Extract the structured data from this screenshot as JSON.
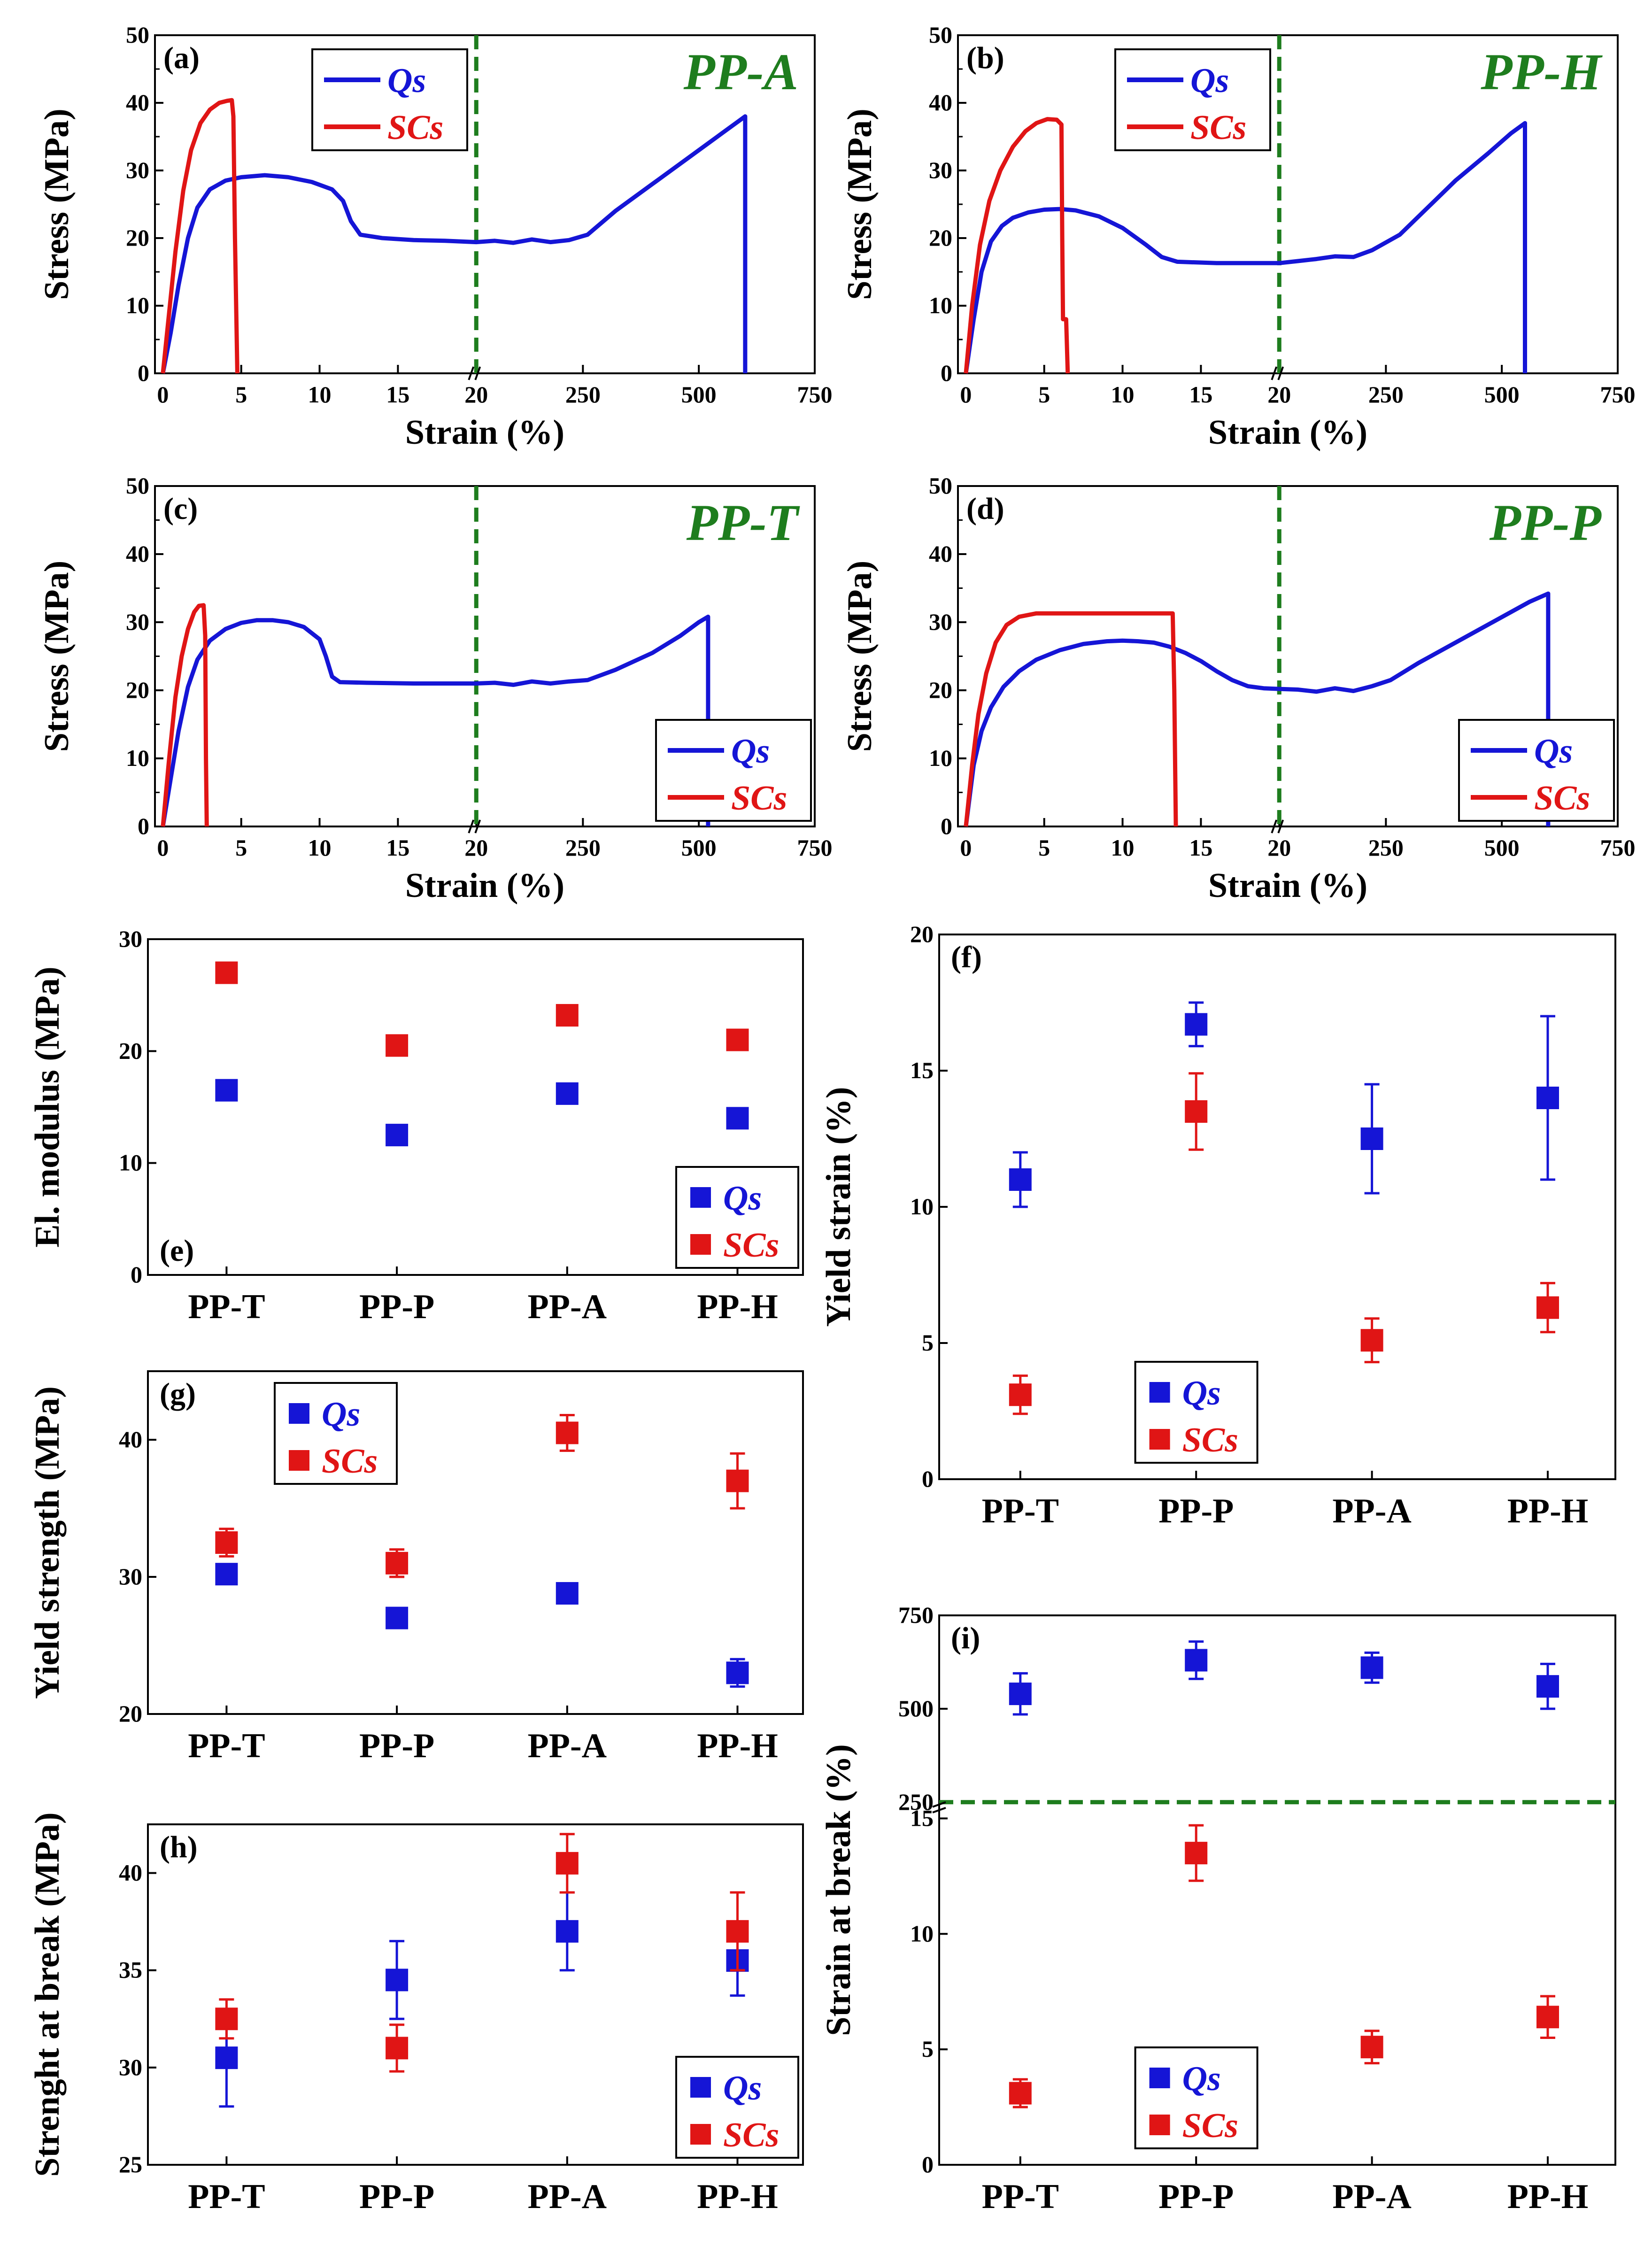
{
  "colors": {
    "qs": "#1515d6",
    "scs": "#e01515",
    "divider": "#1e7d1e"
  },
  "legend": {
    "qs": "Qs",
    "scs": "SCs"
  },
  "chart_data": [
    {
      "type": "line",
      "label": "(a)",
      "title": "PP-A",
      "xlabel": "Strain (%)",
      "ylabel": "Stress (MPa)",
      "ylim": [
        0,
        50
      ],
      "yticks": [
        "0",
        "10",
        "20",
        "30",
        "40",
        "50"
      ],
      "xlim_low": [
        0,
        20
      ],
      "xlim_high": [
        20,
        750
      ],
      "xticks_low": [
        "0",
        "5",
        "10",
        "15",
        "20"
      ],
      "xticks_high": [
        "250",
        "500",
        "750"
      ],
      "legend_pos": "top-left",
      "series": [
        {
          "name": "Qs",
          "points": [
            [
              0,
              0
            ],
            [
              0.5,
              6
            ],
            [
              1,
              13
            ],
            [
              1.6,
              20
            ],
            [
              2.2,
              24.5
            ],
            [
              3,
              27.2
            ],
            [
              4,
              28.5
            ],
            [
              5,
              29
            ],
            [
              6.5,
              29.3
            ],
            [
              8,
              29
            ],
            [
              9.5,
              28.3
            ],
            [
              10.8,
              27.2
            ],
            [
              11.5,
              25.5
            ],
            [
              12,
              22.5
            ],
            [
              12.6,
              20.5
            ],
            [
              14,
              20
            ],
            [
              16,
              19.7
            ],
            [
              18,
              19.6
            ],
            [
              20,
              19.4
            ],
            [
              60,
              19.6
            ],
            [
              100,
              19.3
            ],
            [
              140,
              19.8
            ],
            [
              180,
              19.4
            ],
            [
              220,
              19.7
            ],
            [
              260,
              20.5
            ],
            [
              320,
              24
            ],
            [
              400,
              28
            ],
            [
              480,
              32
            ],
            [
              550,
              35.5
            ],
            [
              600,
              38
            ],
            [
              600,
              0
            ]
          ]
        },
        {
          "name": "SCs",
          "points": [
            [
              0,
              0
            ],
            [
              0.4,
              9
            ],
            [
              0.8,
              18
            ],
            [
              1.3,
              27
            ],
            [
              1.8,
              33
            ],
            [
              2.4,
              37
            ],
            [
              3,
              39
            ],
            [
              3.6,
              40
            ],
            [
              4.1,
              40.3
            ],
            [
              4.4,
              40.4
            ],
            [
              4.5,
              38
            ],
            [
              4.6,
              20
            ],
            [
              4.75,
              0
            ]
          ]
        }
      ]
    },
    {
      "type": "line",
      "label": "(b)",
      "title": "PP-H",
      "xlabel": "Strain (%)",
      "ylabel": "Stress (MPa)",
      "ylim": [
        0,
        50
      ],
      "yticks": [
        "0",
        "10",
        "20",
        "30",
        "40",
        "50"
      ],
      "xlim_low": [
        0,
        20
      ],
      "xlim_high": [
        20,
        750
      ],
      "xticks_low": [
        "0",
        "5",
        "10",
        "15",
        "20"
      ],
      "xticks_high": [
        "250",
        "500",
        "750"
      ],
      "legend_pos": "top-left",
      "series": [
        {
          "name": "Qs",
          "points": [
            [
              0,
              0
            ],
            [
              0.5,
              8
            ],
            [
              1,
              15
            ],
            [
              1.6,
              19.5
            ],
            [
              2.3,
              21.8
            ],
            [
              3,
              23
            ],
            [
              4,
              23.8
            ],
            [
              5,
              24.2
            ],
            [
              6,
              24.3
            ],
            [
              7,
              24.1
            ],
            [
              8.5,
              23.2
            ],
            [
              10,
              21.5
            ],
            [
              11.5,
              19
            ],
            [
              12.5,
              17.2
            ],
            [
              13.5,
              16.5
            ],
            [
              16,
              16.3
            ],
            [
              20,
              16.3
            ],
            [
              60,
              16.6
            ],
            [
              100,
              16.9
            ],
            [
              140,
              17.3
            ],
            [
              180,
              17.2
            ],
            [
              220,
              18.2
            ],
            [
              280,
              20.5
            ],
            [
              340,
              24.5
            ],
            [
              400,
              28.5
            ],
            [
              470,
              32.5
            ],
            [
              520,
              35.5
            ],
            [
              550,
              37
            ],
            [
              550,
              0
            ]
          ]
        },
        {
          "name": "SCs",
          "points": [
            [
              0,
              0
            ],
            [
              0.4,
              10
            ],
            [
              0.9,
              19
            ],
            [
              1.5,
              25.5
            ],
            [
              2.2,
              30
            ],
            [
              3,
              33.5
            ],
            [
              3.8,
              35.8
            ],
            [
              4.5,
              37
            ],
            [
              5.2,
              37.6
            ],
            [
              5.8,
              37.5
            ],
            [
              6.1,
              36.8
            ],
            [
              6.15,
              20
            ],
            [
              6.2,
              8
            ],
            [
              6.4,
              8
            ],
            [
              6.5,
              0
            ]
          ]
        }
      ]
    },
    {
      "type": "line",
      "label": "(c)",
      "title": "PP-T",
      "xlabel": "Strain (%)",
      "ylabel": "Stress (MPa)",
      "ylim": [
        0,
        50
      ],
      "yticks": [
        "0",
        "10",
        "20",
        "30",
        "40",
        "50"
      ],
      "xlim_low": [
        0,
        20
      ],
      "xlim_high": [
        20,
        750
      ],
      "xticks_low": [
        "0",
        "5",
        "10",
        "15",
        "20"
      ],
      "xticks_high": [
        "250",
        "500",
        "750"
      ],
      "legend_pos": "bottom-right",
      "series": [
        {
          "name": "Qs",
          "points": [
            [
              0,
              0
            ],
            [
              0.5,
              7
            ],
            [
              1,
              14
            ],
            [
              1.6,
              20.5
            ],
            [
              2.2,
              24.5
            ],
            [
              3,
              27.3
            ],
            [
              4,
              29
            ],
            [
              5,
              29.9
            ],
            [
              6,
              30.3
            ],
            [
              7,
              30.3
            ],
            [
              8,
              30
            ],
            [
              9,
              29.3
            ],
            [
              10,
              27.5
            ],
            [
              10.4,
              25
            ],
            [
              10.8,
              22
            ],
            [
              11.3,
              21.2
            ],
            [
              13,
              21.1
            ],
            [
              16,
              21
            ],
            [
              20,
              21
            ],
            [
              60,
              21.1
            ],
            [
              100,
              20.8
            ],
            [
              140,
              21.3
            ],
            [
              180,
              21
            ],
            [
              220,
              21.3
            ],
            [
              260,
              21.5
            ],
            [
              320,
              23
            ],
            [
              400,
              25.5
            ],
            [
              460,
              28
            ],
            [
              500,
              30
            ],
            [
              520,
              30.8
            ],
            [
              520,
              0
            ]
          ]
        },
        {
          "name": "SCs",
          "points": [
            [
              0,
              0
            ],
            [
              0.4,
              10
            ],
            [
              0.8,
              19
            ],
            [
              1.2,
              25
            ],
            [
              1.6,
              29
            ],
            [
              2,
              31.5
            ],
            [
              2.3,
              32.4
            ],
            [
              2.6,
              32.5
            ],
            [
              2.7,
              28
            ],
            [
              2.75,
              10
            ],
            [
              2.8,
              0
            ]
          ]
        }
      ]
    },
    {
      "type": "line",
      "label": "(d)",
      "title": "PP-P",
      "xlabel": "Strain (%)",
      "ylabel": "Stress (MPa)",
      "ylim": [
        0,
        50
      ],
      "yticks": [
        "0",
        "10",
        "20",
        "30",
        "40",
        "50"
      ],
      "xlim_low": [
        0,
        20
      ],
      "xlim_high": [
        20,
        750
      ],
      "xticks_low": [
        "0",
        "5",
        "10",
        "15",
        "20"
      ],
      "xticks_high": [
        "250",
        "500",
        "750"
      ],
      "legend_pos": "bottom-right",
      "series": [
        {
          "name": "Qs",
          "points": [
            [
              0,
              0
            ],
            [
              0.5,
              9
            ],
            [
              1,
              14
            ],
            [
              1.6,
              17.5
            ],
            [
              2.4,
              20.5
            ],
            [
              3.4,
              22.8
            ],
            [
              4.5,
              24.5
            ],
            [
              6,
              25.9
            ],
            [
              7.5,
              26.8
            ],
            [
              9,
              27.2
            ],
            [
              10,
              27.3
            ],
            [
              11,
              27.2
            ],
            [
              12,
              27
            ],
            [
              13,
              26.4
            ],
            [
              14,
              25.5
            ],
            [
              15,
              24.3
            ],
            [
              16,
              22.8
            ],
            [
              17,
              21.5
            ],
            [
              18,
              20.6
            ],
            [
              19,
              20.3
            ],
            [
              20,
              20.2
            ],
            [
              60,
              20.1
            ],
            [
              100,
              19.8
            ],
            [
              140,
              20.3
            ],
            [
              180,
              19.9
            ],
            [
              220,
              20.6
            ],
            [
              260,
              21.5
            ],
            [
              320,
              24
            ],
            [
              400,
              27
            ],
            [
              480,
              30
            ],
            [
              560,
              33
            ],
            [
              600,
              34.2
            ],
            [
              600,
              0
            ]
          ]
        },
        {
          "name": "SCs",
          "points": [
            [
              0,
              0
            ],
            [
              0.4,
              9
            ],
            [
              0.8,
              16.5
            ],
            [
              1.3,
              22.5
            ],
            [
              1.9,
              27
            ],
            [
              2.6,
              29.6
            ],
            [
              3.4,
              30.8
            ],
            [
              4.5,
              31.3
            ],
            [
              7,
              31.3
            ],
            [
              10,
              31.3
            ],
            [
              13.2,
              31.3
            ],
            [
              13.3,
              20
            ],
            [
              13.4,
              0
            ]
          ]
        }
      ]
    },
    {
      "type": "scatter",
      "label": "(e)",
      "ylabel": "El. modulus (MPa)",
      "categories": [
        "PP-T",
        "PP-P",
        "PP-A",
        "PP-H"
      ],
      "ylim": [
        0,
        30
      ],
      "yticks": [
        "0",
        "10",
        "20",
        "30"
      ],
      "legend_pos": "bottom-right",
      "series": [
        {
          "name": "Qs",
          "values": [
            16.5,
            12.5,
            16.2,
            14
          ],
          "errors": [
            0.4,
            0.4,
            0.6,
            0.8
          ]
        },
        {
          "name": "SCs",
          "values": [
            27,
            20.5,
            23.2,
            21
          ],
          "errors": [
            0.6,
            0.5,
            0.7,
            0.8
          ]
        }
      ]
    },
    {
      "type": "scatter",
      "label": "(f)",
      "ylabel": "Yield strain (%)",
      "categories": [
        "PP-T",
        "PP-P",
        "PP-A",
        "PP-H"
      ],
      "ylim": [
        0,
        20
      ],
      "yticks": [
        "0",
        "5",
        "10",
        "15",
        "20"
      ],
      "legend_pos": "bottom-center",
      "series": [
        {
          "name": "Qs",
          "values": [
            11,
            16.7,
            12.5,
            14
          ],
          "errors": [
            1,
            0.8,
            2,
            3
          ]
        },
        {
          "name": "SCs",
          "values": [
            3.1,
            13.5,
            5.1,
            6.3
          ],
          "errors": [
            0.7,
            1.4,
            0.8,
            0.9
          ]
        }
      ]
    },
    {
      "type": "scatter",
      "label": "(g)",
      "ylabel": "Yield strength (MPa)",
      "categories": [
        "PP-T",
        "PP-P",
        "PP-A",
        "PP-H"
      ],
      "ylim": [
        20,
        45
      ],
      "yticks": [
        "20",
        "30",
        "40"
      ],
      "legend_pos": "top-left",
      "series": [
        {
          "name": "Qs",
          "values": [
            30.2,
            27,
            28.8,
            23
          ],
          "errors": [
            0.4,
            0.4,
            0.5,
            1
          ]
        },
        {
          "name": "SCs",
          "values": [
            32.5,
            31,
            40.5,
            37
          ],
          "errors": [
            1,
            1,
            1.3,
            2
          ]
        }
      ]
    },
    {
      "type": "scatter",
      "label": "(h)",
      "ylabel": "Strenght at break (MPa)",
      "categories": [
        "PP-T",
        "PP-P",
        "PP-A",
        "PP-H"
      ],
      "ylim": [
        25,
        42.5
      ],
      "yticks": [
        "25",
        "30",
        "35",
        "40"
      ],
      "legend_pos": "bottom-right",
      "series": [
        {
          "name": "Qs",
          "values": [
            30.5,
            34.5,
            37,
            35.5
          ],
          "errors": [
            2.5,
            2,
            2,
            1.8
          ]
        },
        {
          "name": "SCs",
          "values": [
            32.5,
            31,
            40.5,
            37
          ],
          "errors": [
            1,
            1.2,
            1.5,
            2
          ]
        }
      ]
    },
    {
      "type": "scatter",
      "label": "(i)",
      "ylabel": "Strain at break (%)",
      "categories": [
        "PP-T",
        "PP-P",
        "PP-A",
        "PP-H"
      ],
      "ylim_low": [
        0,
        15
      ],
      "ylim_high": [
        250,
        750
      ],
      "yticks_low": [
        "0",
        "5",
        "10",
        "15"
      ],
      "yticks_high": [
        "250",
        "500",
        "750"
      ],
      "legend_pos": "bottom-center",
      "series": [
        {
          "name": "Qs",
          "values": [
            540,
            630,
            610,
            560
          ],
          "errors": [
            55,
            50,
            40,
            60
          ]
        },
        {
          "name": "SCs",
          "values": [
            3.1,
            13.5,
            5.1,
            6.4
          ],
          "errors": [
            0.6,
            1.2,
            0.7,
            0.9
          ]
        }
      ]
    }
  ]
}
